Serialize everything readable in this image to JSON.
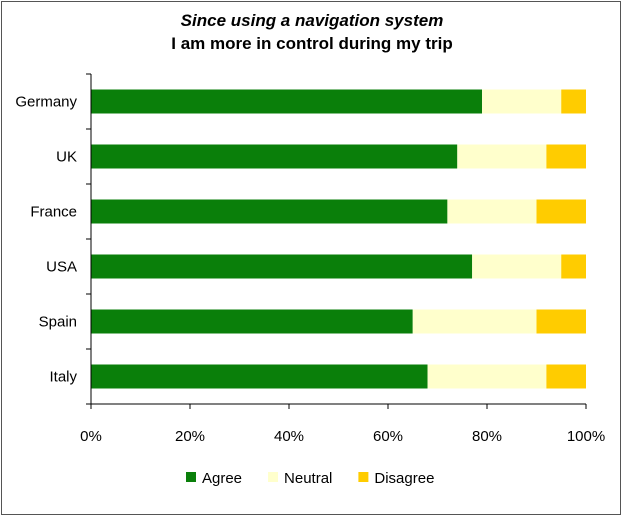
{
  "chart_data": {
    "type": "bar",
    "orientation": "horizontal",
    "stacked": "percent",
    "title_line1": "Since using a navigation system",
    "title_line2": "I am more in control during my trip",
    "categories": [
      "Germany",
      "UK",
      "France",
      "USA",
      "Spain",
      "Italy"
    ],
    "series": [
      {
        "name": "Agree",
        "color": "#0a7f0a",
        "values": [
          79,
          74,
          72,
          77,
          65,
          68
        ]
      },
      {
        "name": "Neutral",
        "color": "#ffffcc",
        "values": [
          16,
          18,
          18,
          18,
          25,
          24
        ]
      },
      {
        "name": "Disagree",
        "color": "#ffcc00",
        "values": [
          5,
          8,
          10,
          5,
          10,
          8
        ]
      }
    ],
    "xlim": [
      0,
      100
    ],
    "xticks": [
      "0%",
      "20%",
      "40%",
      "60%",
      "80%",
      "100%"
    ],
    "grid": false,
    "legend_position": "bottom"
  }
}
